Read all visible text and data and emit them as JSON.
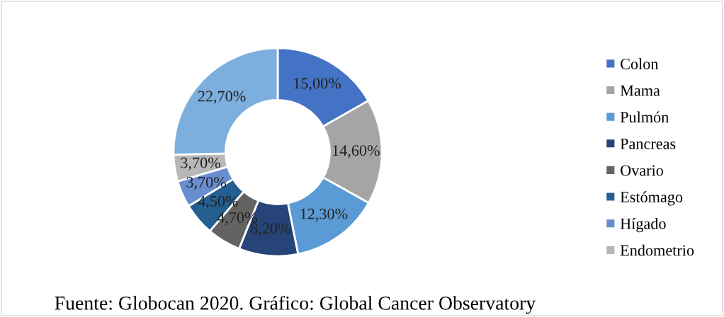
{
  "chart_data": {
    "type": "donut",
    "categories": [
      "Colon",
      "Mama",
      "Pulmón",
      "Pancreas",
      "Ovario",
      "Estómago",
      "Hígado",
      "Endometrio",
      null
    ],
    "values": [
      15.0,
      14.6,
      12.3,
      8.2,
      4.7,
      4.5,
      3.7,
      3.7,
      22.7
    ],
    "value_labels": [
      "15,00%",
      "14,60%",
      "12,30%",
      "8,20%",
      "4,70%",
      "4,50%",
      "3,70%",
      "3,70%",
      "22,70%"
    ],
    "colors": [
      "#4472c4",
      "#a5a5a5",
      "#5b9bd5",
      "#264478",
      "#636363",
      "#255e91",
      "#698ed0",
      "#b7b7b7",
      "#7cafdd"
    ],
    "legend": "right",
    "annotations": [
      "Fuente: Globocan 2020. Gráfico: Global Cancer Observatory"
    ]
  }
}
